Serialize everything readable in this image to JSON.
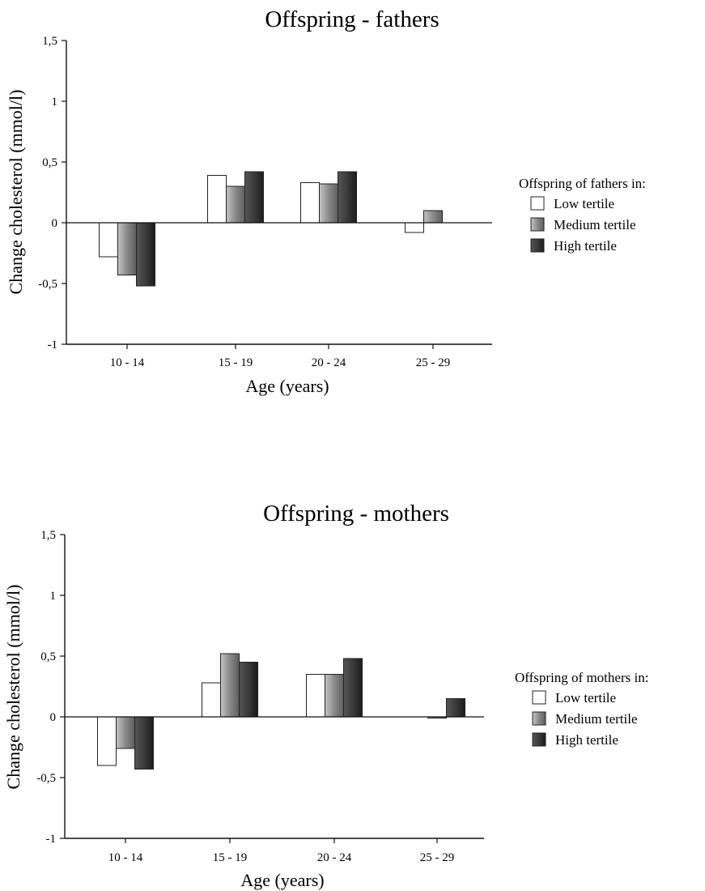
{
  "chart_data": [
    {
      "type": "bar",
      "title": "Offspring - fathers",
      "xlabel": "Age (years)",
      "ylabel": "Change cholesterol (mmol/l)",
      "categories": [
        "10 - 14",
        "15 - 19",
        "20 - 24",
        "25 - 29"
      ],
      "ylim": [
        -1,
        1.5
      ],
      "yticks": [
        "-1",
        "-0,5",
        "0",
        "0,5",
        "1",
        "1,5"
      ],
      "yticks_values": [
        -1,
        -0.5,
        0,
        0.5,
        1,
        1.5
      ],
      "legend_title": "Offspring of fathers in:",
      "legend_placement": "right",
      "grid": false,
      "series": [
        {
          "name": "Low tertile",
          "color": "#ffffff",
          "values": [
            -0.28,
            0.39,
            0.33,
            -0.08
          ]
        },
        {
          "name": "Medium tertile",
          "color": "#8a8a8a",
          "values": [
            -0.43,
            0.3,
            0.32,
            0.1
          ]
        },
        {
          "name": "High tertile",
          "color": "#3a3a3a",
          "values": [
            -0.52,
            0.42,
            0.42,
            0.0
          ]
        }
      ]
    },
    {
      "type": "bar",
      "title": "Offspring - mothers",
      "xlabel": "Age (years)",
      "ylabel": "Change cholesterol (mmol/l)",
      "categories": [
        "10 - 14",
        "15 - 19",
        "20 - 24",
        "25 - 29"
      ],
      "ylim": [
        -1,
        1.5
      ],
      "yticks": [
        "-1",
        "-0,5",
        "0",
        "0,5",
        "1",
        "1,5"
      ],
      "yticks_values": [
        -1,
        -0.5,
        0,
        0.5,
        1,
        1.5
      ],
      "legend_title": "Offspring of mothers in:",
      "legend_placement": "right",
      "grid": false,
      "series": [
        {
          "name": "Low tertile",
          "color": "#ffffff",
          "values": [
            -0.4,
            0.28,
            0.35,
            0.0
          ]
        },
        {
          "name": "Medium tertile",
          "color": "#8a8a8a",
          "values": [
            -0.26,
            0.52,
            0.35,
            -0.01
          ]
        },
        {
          "name": "High tertile",
          "color": "#3a3a3a",
          "values": [
            -0.43,
            0.45,
            0.48,
            0.15
          ]
        }
      ]
    }
  ]
}
